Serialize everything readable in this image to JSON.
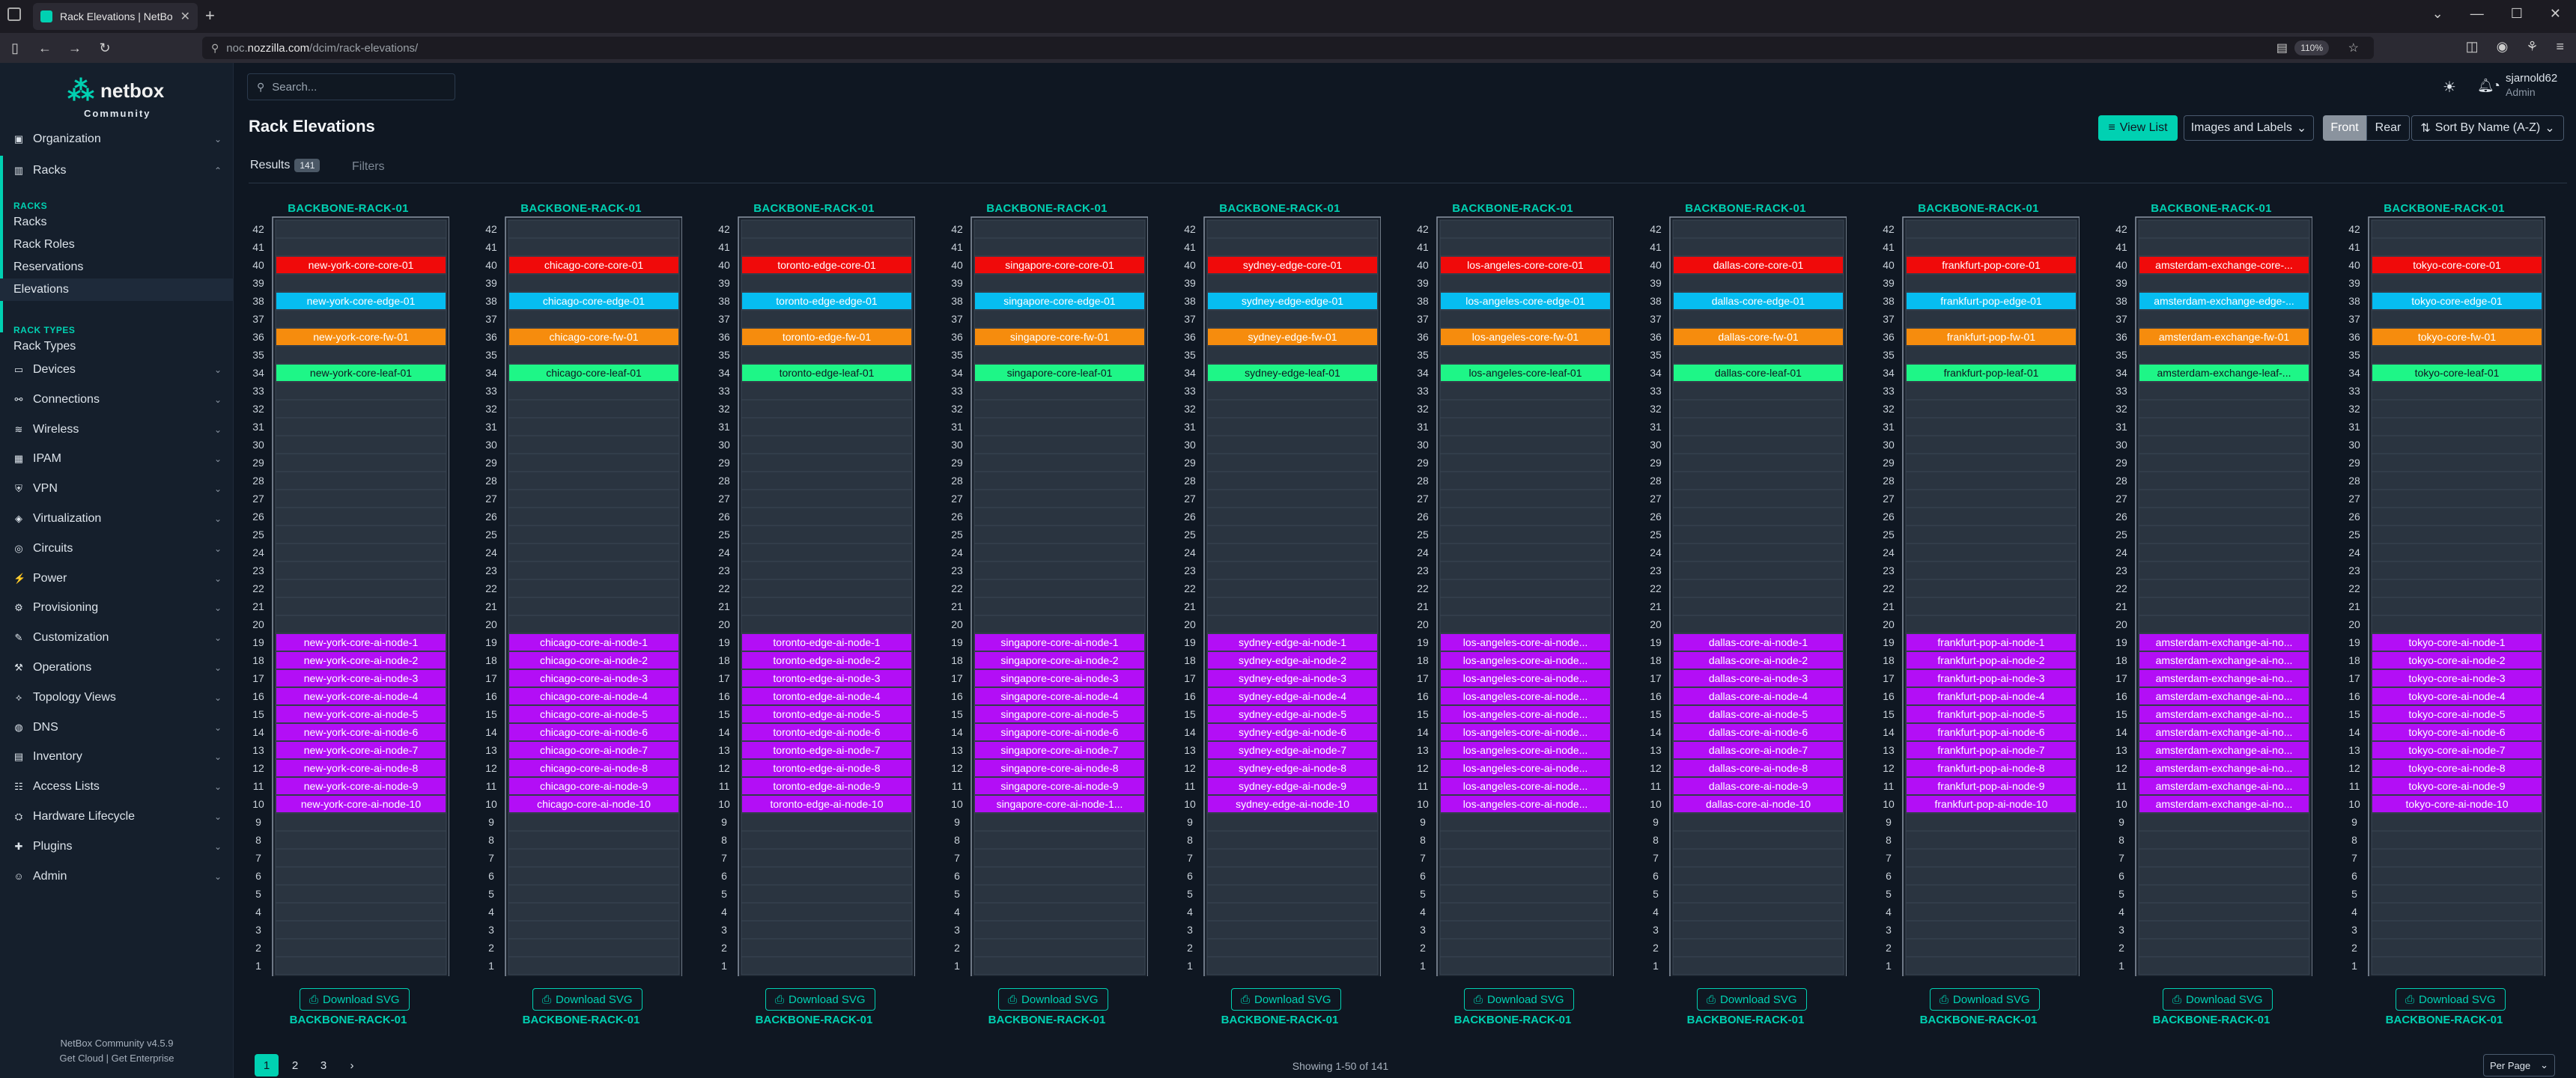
{
  "browser": {
    "tab_title": "Rack Elevations | NetBox",
    "url_prefix": "noc.",
    "url_domain": "nozzilla.com",
    "url_path": "/dcim/rack-elevations/",
    "zoom": "110%"
  },
  "sidebar": {
    "logo_word": "netbox",
    "logo_sub": "Community",
    "menus": [
      {
        "label": "Organization",
        "icon": "org-icon"
      },
      {
        "label": "Racks",
        "icon": "rack-icon"
      }
    ],
    "racks_section": {
      "head_racks": "RACKS",
      "racks_items": [
        "Racks",
        "Rack Roles",
        "Reservations",
        "Elevations"
      ],
      "head_types": "RACK TYPES",
      "types_items": [
        "Rack Types"
      ]
    },
    "lower_menus": [
      {
        "label": "Devices",
        "icon": "devices-icon"
      },
      {
        "label": "Connections",
        "icon": "connections-icon"
      },
      {
        "label": "Wireless",
        "icon": "wireless-icon"
      },
      {
        "label": "IPAM",
        "icon": "ipam-icon"
      },
      {
        "label": "VPN",
        "icon": "vpn-icon"
      },
      {
        "label": "Virtualization",
        "icon": "virtualization-icon"
      },
      {
        "label": "Circuits",
        "icon": "circuits-icon"
      },
      {
        "label": "Power",
        "icon": "power-icon"
      },
      {
        "label": "Provisioning",
        "icon": "provisioning-icon"
      },
      {
        "label": "Customization",
        "icon": "customization-icon"
      },
      {
        "label": "Operations",
        "icon": "operations-icon"
      },
      {
        "label": "Topology Views",
        "icon": "topology-icon"
      },
      {
        "label": "DNS",
        "icon": "dns-icon"
      },
      {
        "label": "Inventory",
        "icon": "inventory-icon"
      },
      {
        "label": "Access Lists",
        "icon": "access-lists-icon"
      },
      {
        "label": "Hardware Lifecycle",
        "icon": "hardware-icon"
      },
      {
        "label": "Plugins",
        "icon": "plugins-icon"
      },
      {
        "label": "Admin",
        "icon": "admin-icon"
      }
    ],
    "footer_version": "NetBox Community v4.5.9",
    "footer_links": "Get Cloud | Get Enterprise"
  },
  "header": {
    "search_placeholder": "Search...",
    "user_name": "sjarnold62",
    "user_role": "Admin"
  },
  "page": {
    "title": "Rack Elevations",
    "view_list_label": "View List",
    "images_select": "Images and Labels",
    "front_label": "Front",
    "rear_label": "Rear",
    "sort_label": "Sort By Name (A-Z)",
    "tab_results": "Results",
    "results_count": "141",
    "tab_filters": "Filters"
  },
  "colors": {
    "core": "#f00a0a",
    "edge": "#06bdf1",
    "fw": "#f68c0d",
    "leaf": "#1ef687",
    "node": "#b30ef6"
  },
  "racks": [
    {
      "name": "BACKBONE-RACK-01",
      "core": "new-york-core-core-01",
      "edge": "new-york-core-edge-01",
      "fw": "new-york-core-fw-01",
      "leaf": "new-york-core-leaf-01",
      "nodes": [
        "new-york-core-ai-node-1",
        "new-york-core-ai-node-2",
        "new-york-core-ai-node-3",
        "new-york-core-ai-node-4",
        "new-york-core-ai-node-5",
        "new-york-core-ai-node-6",
        "new-york-core-ai-node-7",
        "new-york-core-ai-node-8",
        "new-york-core-ai-node-9",
        "new-york-core-ai-node-10"
      ]
    },
    {
      "name": "BACKBONE-RACK-01",
      "core": "chicago-core-core-01",
      "edge": "chicago-core-edge-01",
      "fw": "chicago-core-fw-01",
      "leaf": "chicago-core-leaf-01",
      "nodes": [
        "chicago-core-ai-node-1",
        "chicago-core-ai-node-2",
        "chicago-core-ai-node-3",
        "chicago-core-ai-node-4",
        "chicago-core-ai-node-5",
        "chicago-core-ai-node-6",
        "chicago-core-ai-node-7",
        "chicago-core-ai-node-8",
        "chicago-core-ai-node-9",
        "chicago-core-ai-node-10"
      ]
    },
    {
      "name": "BACKBONE-RACK-01",
      "core": "toronto-edge-core-01",
      "edge": "toronto-edge-edge-01",
      "fw": "toronto-edge-fw-01",
      "leaf": "toronto-edge-leaf-01",
      "nodes": [
        "toronto-edge-ai-node-1",
        "toronto-edge-ai-node-2",
        "toronto-edge-ai-node-3",
        "toronto-edge-ai-node-4",
        "toronto-edge-ai-node-5",
        "toronto-edge-ai-node-6",
        "toronto-edge-ai-node-7",
        "toronto-edge-ai-node-8",
        "toronto-edge-ai-node-9",
        "toronto-edge-ai-node-10"
      ]
    },
    {
      "name": "BACKBONE-RACK-01",
      "core": "singapore-core-core-01",
      "edge": "singapore-core-edge-01",
      "fw": "singapore-core-fw-01",
      "leaf": "singapore-core-leaf-01",
      "nodes": [
        "singapore-core-ai-node-1",
        "singapore-core-ai-node-2",
        "singapore-core-ai-node-3",
        "singapore-core-ai-node-4",
        "singapore-core-ai-node-5",
        "singapore-core-ai-node-6",
        "singapore-core-ai-node-7",
        "singapore-core-ai-node-8",
        "singapore-core-ai-node-9",
        "singapore-core-ai-node-1..."
      ]
    },
    {
      "name": "BACKBONE-RACK-01",
      "core": "sydney-edge-core-01",
      "edge": "sydney-edge-edge-01",
      "fw": "sydney-edge-fw-01",
      "leaf": "sydney-edge-leaf-01",
      "nodes": [
        "sydney-edge-ai-node-1",
        "sydney-edge-ai-node-2",
        "sydney-edge-ai-node-3",
        "sydney-edge-ai-node-4",
        "sydney-edge-ai-node-5",
        "sydney-edge-ai-node-6",
        "sydney-edge-ai-node-7",
        "sydney-edge-ai-node-8",
        "sydney-edge-ai-node-9",
        "sydney-edge-ai-node-10"
      ]
    },
    {
      "name": "BACKBONE-RACK-01",
      "core": "los-angeles-core-core-01",
      "edge": "los-angeles-core-edge-01",
      "fw": "los-angeles-core-fw-01",
      "leaf": "los-angeles-core-leaf-01",
      "nodes": [
        "los-angeles-core-ai-node...",
        "los-angeles-core-ai-node...",
        "los-angeles-core-ai-node...",
        "los-angeles-core-ai-node...",
        "los-angeles-core-ai-node...",
        "los-angeles-core-ai-node...",
        "los-angeles-core-ai-node...",
        "los-angeles-core-ai-node...",
        "los-angeles-core-ai-node...",
        "los-angeles-core-ai-node..."
      ]
    },
    {
      "name": "BACKBONE-RACK-01",
      "core": "dallas-core-core-01",
      "edge": "dallas-core-edge-01",
      "fw": "dallas-core-fw-01",
      "leaf": "dallas-core-leaf-01",
      "nodes": [
        "dallas-core-ai-node-1",
        "dallas-core-ai-node-2",
        "dallas-core-ai-node-3",
        "dallas-core-ai-node-4",
        "dallas-core-ai-node-5",
        "dallas-core-ai-node-6",
        "dallas-core-ai-node-7",
        "dallas-core-ai-node-8",
        "dallas-core-ai-node-9",
        "dallas-core-ai-node-10"
      ]
    },
    {
      "name": "BACKBONE-RACK-01",
      "core": "frankfurt-pop-core-01",
      "edge": "frankfurt-pop-edge-01",
      "fw": "frankfurt-pop-fw-01",
      "leaf": "frankfurt-pop-leaf-01",
      "nodes": [
        "frankfurt-pop-ai-node-1",
        "frankfurt-pop-ai-node-2",
        "frankfurt-pop-ai-node-3",
        "frankfurt-pop-ai-node-4",
        "frankfurt-pop-ai-node-5",
        "frankfurt-pop-ai-node-6",
        "frankfurt-pop-ai-node-7",
        "frankfurt-pop-ai-node-8",
        "frankfurt-pop-ai-node-9",
        "frankfurt-pop-ai-node-10"
      ]
    },
    {
      "name": "BACKBONE-RACK-01",
      "core": "amsterdam-exchange-core-...",
      "edge": "amsterdam-exchange-edge-...",
      "fw": "amsterdam-exchange-fw-01",
      "leaf": "amsterdam-exchange-leaf-...",
      "nodes": [
        "amsterdam-exchange-ai-no...",
        "amsterdam-exchange-ai-no...",
        "amsterdam-exchange-ai-no...",
        "amsterdam-exchange-ai-no...",
        "amsterdam-exchange-ai-no...",
        "amsterdam-exchange-ai-no...",
        "amsterdam-exchange-ai-no...",
        "amsterdam-exchange-ai-no...",
        "amsterdam-exchange-ai-no...",
        "amsterdam-exchange-ai-no..."
      ]
    },
    {
      "name": "BACKBONE-RACK-01",
      "core": "tokyo-core-core-01",
      "edge": "tokyo-core-edge-01",
      "fw": "tokyo-core-fw-01",
      "leaf": "tokyo-core-leaf-01",
      "nodes": [
        "tokyo-core-ai-node-1",
        "tokyo-core-ai-node-2",
        "tokyo-core-ai-node-3",
        "tokyo-core-ai-node-4",
        "tokyo-core-ai-node-5",
        "tokyo-core-ai-node-6",
        "tokyo-core-ai-node-7",
        "tokyo-core-ai-node-8",
        "tokyo-core-ai-node-9",
        "tokyo-core-ai-node-10"
      ]
    }
  ],
  "rack_units": 42,
  "download_label": "Download SVG",
  "pagination": {
    "pages": [
      "1",
      "2",
      "3",
      "›"
    ],
    "showing": "Showing 1-50 of 141",
    "per_page": "Per Page"
  }
}
